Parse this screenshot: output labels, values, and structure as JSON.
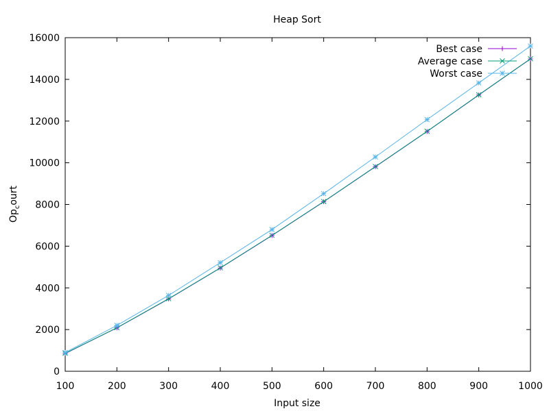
{
  "chart_data": {
    "type": "line",
    "title": "Heap Sort",
    "xlabel": "Input size",
    "ylabel_main": "Op",
    "ylabel_sub": "c",
    "ylabel_rest": "ourt",
    "xlim": [
      100,
      1000
    ],
    "ylim": [
      0,
      16000
    ],
    "x_ticks": [
      100,
      200,
      300,
      400,
      500,
      600,
      700,
      800,
      900,
      1000
    ],
    "y_ticks": [
      0,
      2000,
      4000,
      6000,
      8000,
      10000,
      12000,
      14000,
      16000
    ],
    "grid": false,
    "legend_position": "top-right",
    "x": [
      100,
      200,
      300,
      400,
      500,
      600,
      700,
      800,
      900,
      1000
    ],
    "series": [
      {
        "name": "Best case",
        "color": "#9400d3",
        "marker": "plus",
        "values": [
          850,
          2080,
          3470,
          4950,
          6510,
          8130,
          9810,
          11500,
          13250,
          14980
        ]
      },
      {
        "name": "Average case",
        "color": "#009e73",
        "marker": "cross",
        "values": [
          860,
          2090,
          3480,
          4960,
          6520,
          8140,
          9820,
          11510,
          13260,
          14990
        ]
      },
      {
        "name": "Worst case",
        "color": "#56b4e9",
        "marker": "star",
        "values": [
          900,
          2200,
          3640,
          5210,
          6800,
          8520,
          10280,
          12070,
          13830,
          15600
        ]
      }
    ]
  }
}
